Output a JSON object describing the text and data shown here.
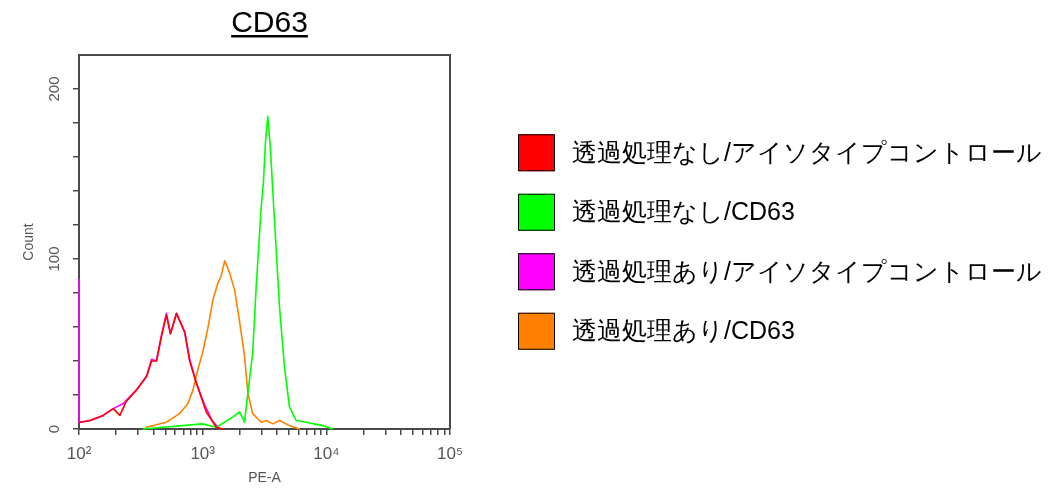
{
  "chart_data": {
    "type": "line",
    "title": "CD63",
    "xlabel": "PE-A",
    "ylabel": "Count",
    "log": "x",
    "legend": "right",
    "marker": "none",
    "xlim": [
      100,
      100000
    ],
    "ylim": [
      0,
      220
    ],
    "xticks": [
      {
        "value": 100,
        "label": "10²"
      },
      {
        "value": 200,
        "label": null
      },
      {
        "value": 300,
        "label": null
      },
      {
        "value": 400,
        "label": null
      },
      {
        "value": 500,
        "label": null
      },
      {
        "value": 600,
        "label": null
      },
      {
        "value": 700,
        "label": null
      },
      {
        "value": 800,
        "label": null
      },
      {
        "value": 900,
        "label": null
      },
      {
        "value": 1000,
        "label": "10³"
      },
      {
        "value": 2000,
        "label": null
      },
      {
        "value": 3000,
        "label": null
      },
      {
        "value": 4000,
        "label": null
      },
      {
        "value": 5000,
        "label": null
      },
      {
        "value": 6000,
        "label": null
      },
      {
        "value": 7000,
        "label": null
      },
      {
        "value": 8000,
        "label": null
      },
      {
        "value": 9000,
        "label": null
      },
      {
        "value": 10000,
        "label": "10⁴"
      },
      {
        "value": 20000,
        "label": null
      },
      {
        "value": 30000,
        "label": null
      },
      {
        "value": 40000,
        "label": null
      },
      {
        "value": 50000,
        "label": null
      },
      {
        "value": 60000,
        "label": null
      },
      {
        "value": 70000,
        "label": null
      },
      {
        "value": 80000,
        "label": null
      },
      {
        "value": 90000,
        "label": null
      },
      {
        "value": 100000,
        "label": "10⁵"
      }
    ],
    "yticks": [
      0,
      {
        "value": 20,
        "label": null
      },
      {
        "value": 40,
        "label": null
      },
      {
        "value": 60,
        "label": null
      },
      {
        "value": 80,
        "label": null
      },
      100,
      {
        "value": 120,
        "label": null
      },
      {
        "value": 140,
        "label": null
      },
      {
        "value": 160,
        "label": null
      },
      {
        "value": 180,
        "label": null
      },
      200
    ],
    "series": [
      {
        "name": "透過処理なし/アイソタイプコントロール",
        "color": "#ff0000",
        "x": [
          102,
          123,
          157,
          189,
          214,
          240,
          292,
          352,
          386,
          423,
          465,
          509,
          549,
          614,
          716,
          785,
          889,
          1070,
          1290,
          1460
        ],
        "values": [
          4,
          5,
          8,
          12,
          8,
          16,
          23,
          31,
          40,
          40,
          55,
          67,
          56,
          68,
          57,
          40,
          27,
          10,
          1,
          0
        ]
      },
      {
        "name": "透過処理なし/CD63",
        "color": "#00ff00",
        "x": [
          330,
          1000,
          1290,
          1750,
          1990,
          2180,
          2320,
          2540,
          2710,
          2970,
          3100,
          3220,
          3360,
          3530,
          3690,
          3970,
          4180,
          4580,
          5030,
          5700,
          6860,
          9330,
          11200
        ],
        "values": [
          0,
          3,
          1,
          7,
          10,
          4,
          21,
          45,
          84,
          130,
          145,
          169,
          184,
          165,
          140,
          100,
          72,
          37,
          13,
          5,
          4,
          2,
          0
        ]
      },
      {
        "name": "透過処理あり/アイソタイプコントロール",
        "color": "#ff00ff",
        "x": [
          100,
          100,
          102,
          123,
          157,
          189,
          228,
          292,
          352,
          386,
          423,
          465,
          509,
          549,
          614,
          716,
          785,
          889,
          1040,
          1190,
          1370
        ],
        "values": [
          88,
          4,
          4,
          5,
          8,
          12,
          15,
          23,
          31,
          41,
          40,
          55,
          68,
          56,
          68,
          57,
          41,
          27,
          14,
          5,
          0
        ]
      },
      {
        "name": "透過処理あり/CD63",
        "color": "#ff8000",
        "x": [
          350,
          509,
          650,
          760,
          835,
          915,
          1000,
          1100,
          1210,
          1330,
          1410,
          1510,
          1650,
          1810,
          1990,
          2180,
          2320,
          2540,
          2970,
          3260,
          3700,
          4180,
          5020,
          6050
        ],
        "values": [
          1,
          4,
          9,
          15,
          23,
          35,
          45,
          59,
          76,
          86,
          90,
          99,
          92,
          82,
          63,
          43,
          21,
          9,
          4,
          5,
          3,
          5,
          2,
          0
        ]
      }
    ]
  }
}
